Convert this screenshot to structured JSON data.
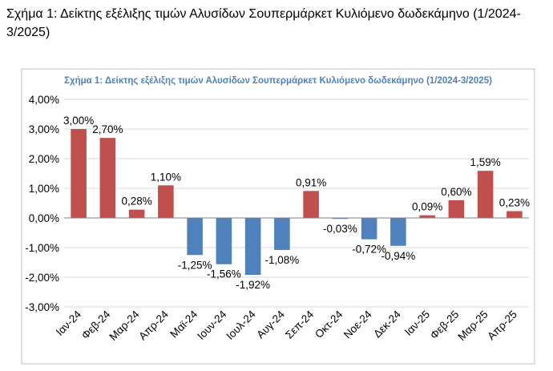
{
  "caption": "Σχήμα 1: Δείκτης εξέλιξης τιμών Αλυσίδων Σουπερμάρκετ Κυλιόμενο δωδεκάμηνο (1/2024-3/2025)",
  "colors": {
    "positive": "#C0504D",
    "negative": "#4F81BD",
    "title": "#4F81BD",
    "grid": "#D9D9D9",
    "axis": "#808080"
  },
  "chart_data": {
    "type": "bar",
    "title": "Σχήμα 1: Δείκτης εξέλιξης τιμών Αλυσίδων Σουπερμάρκετ Κυλιόμενο δωδεκάμηνο (1/2024-3/2025)",
    "xlabel": "",
    "ylabel": "",
    "categories": [
      "Ιαν-24",
      "Φεβ-24",
      "Μαρ-24",
      "Απρ-24",
      "Μαϊ-24",
      "Ιουν-24",
      "Ιουλ-24",
      "Αυγ-24",
      "Σεπ-24",
      "Οκτ-24",
      "Νοε-24",
      "Δεκ-24",
      "Ιαν-25",
      "Φεβ-25",
      "Μαρ-25",
      "Απρ-25"
    ],
    "values": [
      3.0,
      2.7,
      0.28,
      1.1,
      -1.25,
      -1.56,
      -1.92,
      -1.08,
      0.91,
      -0.03,
      -0.72,
      -0.94,
      0.09,
      0.6,
      1.59,
      0.23
    ],
    "data_labels": [
      "3,00%",
      "2,70%",
      "0,28%",
      "1,10%",
      "-1,25%",
      "-1,56%",
      "-1,92%",
      "-1,08%",
      "0,91%",
      "-0,03%",
      "-0,72%",
      "-0,94%",
      "0,09%",
      "0,60%",
      "1,59%",
      "0,23%"
    ],
    "ylim": [
      -3,
      4
    ],
    "yticks": [
      4,
      3,
      2,
      1,
      0,
      -1,
      -2,
      -3
    ],
    "ytick_labels": [
      "4,00%",
      "3,00%",
      "2,00%",
      "1,00%",
      "0,00%",
      "-1,00%",
      "-2,00%",
      "-3,00%"
    ],
    "grid": true,
    "legend": "none"
  }
}
